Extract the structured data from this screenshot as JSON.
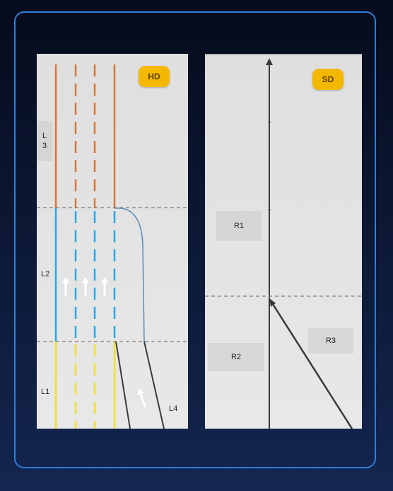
{
  "hd_panel": {
    "badge": "HD",
    "labels": {
      "l3": "L\n3",
      "l2": "L2",
      "l1": "L1",
      "l4": "L4"
    }
  },
  "sd_panel": {
    "badge": "SD",
    "labels": {
      "r1": "R1",
      "r2": "R2",
      "r3": "R3"
    }
  },
  "colors": {
    "l3_lane": "#d6763a",
    "l2_lane": "#29a6e6",
    "l1_lane": "#f0e030",
    "boundary": "#7a7a7a",
    "merge_curve": "#5a8ab8",
    "road_dark": "#3a3a3a",
    "frame": "#2f7fd6",
    "badge": "#f5b800"
  },
  "icons": [
    "arrow-up-icon",
    "arrow-up-icon",
    "arrow-up-icon",
    "arrow-up-icon"
  ]
}
